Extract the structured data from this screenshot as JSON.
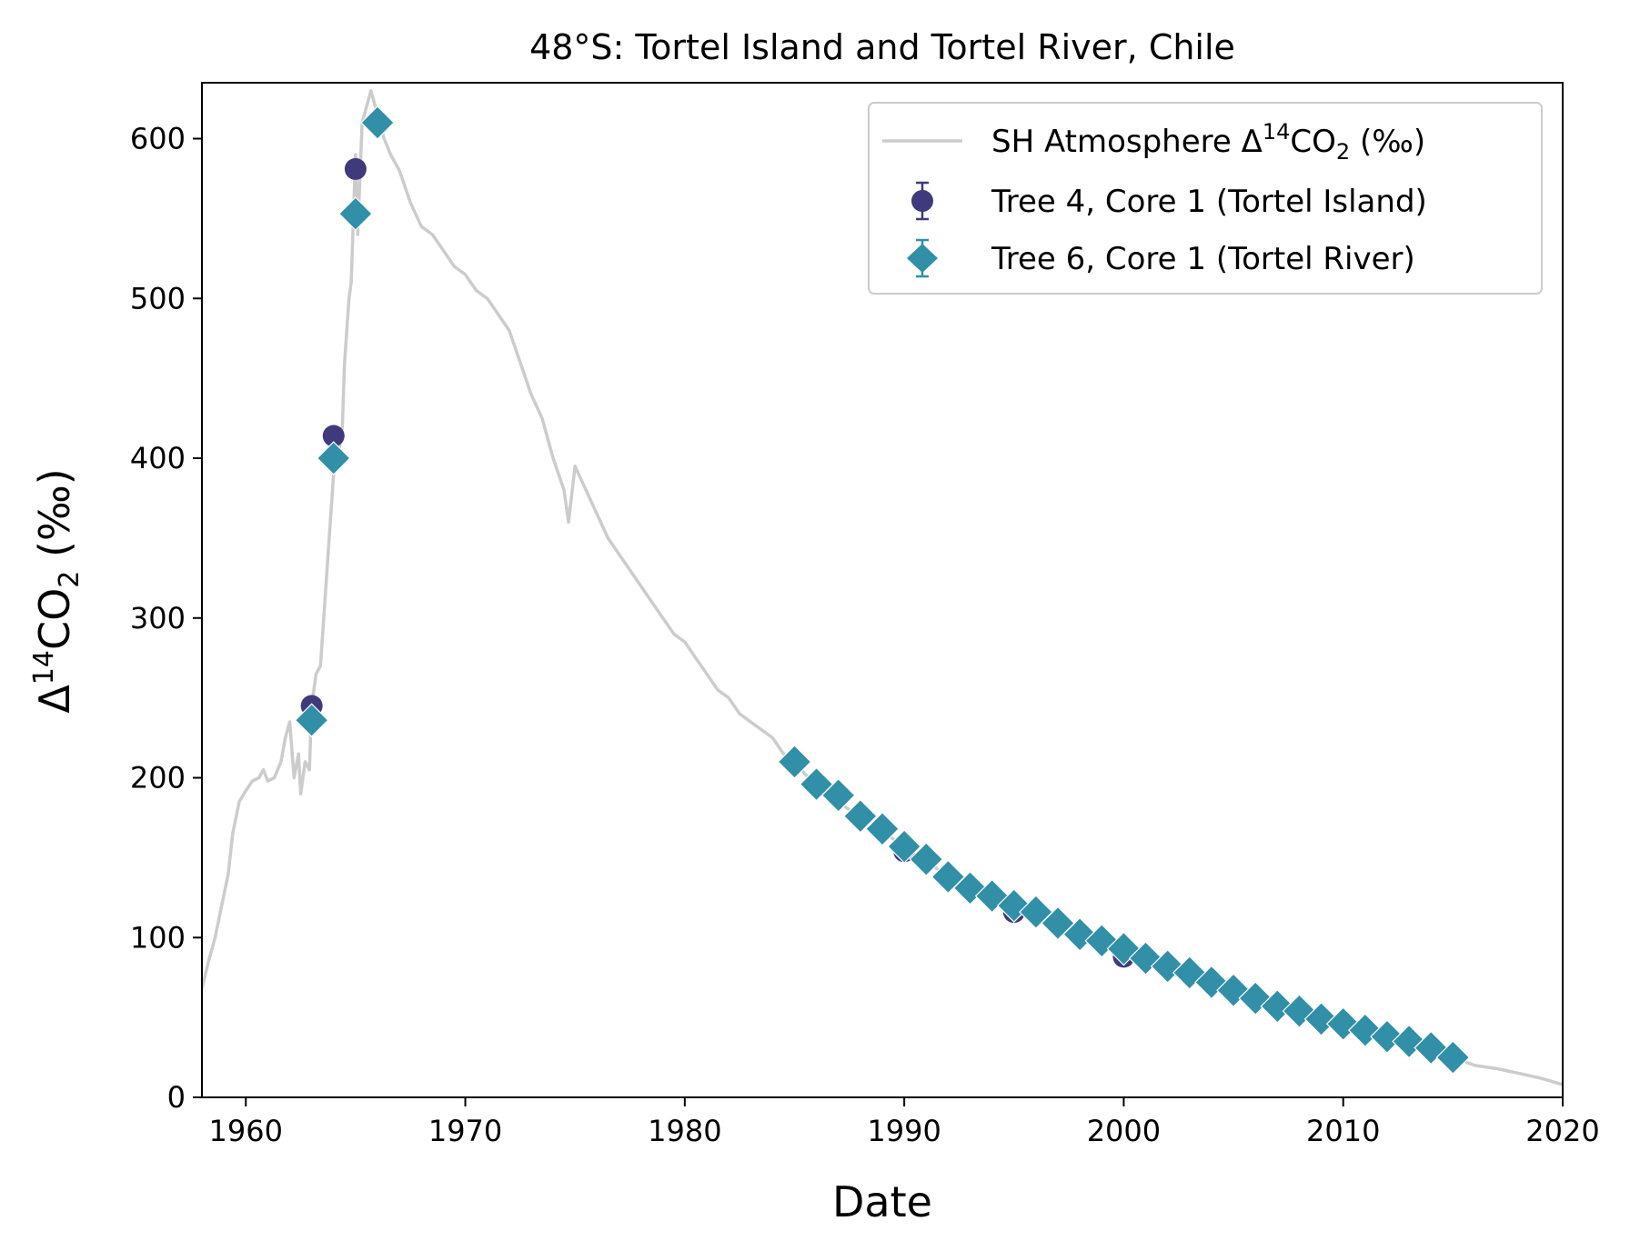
{
  "chart_data": {
    "type": "scatter",
    "title": "48°S: Tortel Island and Tortel River, Chile",
    "xlabel": "Date",
    "ylabel": {
      "base": "Δ",
      "sup": "14",
      "mid": "CO",
      "sub": "2",
      "tail": " (‰)"
    },
    "xlim": [
      1958,
      2020
    ],
    "ylim": [
      0,
      635
    ],
    "x_ticks": [
      1960,
      1970,
      1980,
      1990,
      2000,
      2010,
      2020
    ],
    "y_ticks": [
      0,
      100,
      200,
      300,
      400,
      500,
      600
    ],
    "grid": false,
    "legend_position": "top-right",
    "legend": [
      {
        "label_main": "SH Atmosphere Δ",
        "label_sup": "14",
        "label_mid": "CO",
        "label_sub": "2",
        "label_tail": " (‰)",
        "marker": "line"
      },
      {
        "label": "Tree 4, Core 1 (Tortel Island)",
        "marker": "circle"
      },
      {
        "label": "Tree 6, Core 1 (Tortel River)",
        "marker": "diamond"
      }
    ],
    "colors": {
      "atmosphere": "#cccccc",
      "tree4": "#3e3a7b",
      "tree6": "#318fa8"
    },
    "series": [
      {
        "key": "atmosphere",
        "type": "line",
        "x": [
          1958.0,
          1958.3,
          1958.6,
          1958.9,
          1959.2,
          1959.4,
          1959.7,
          1960.0,
          1960.3,
          1960.6,
          1960.8,
          1961.0,
          1961.3,
          1961.6,
          1961.8,
          1962.0,
          1962.2,
          1962.4,
          1962.5,
          1962.7,
          1962.9,
          1963.0,
          1963.2,
          1963.4,
          1963.6,
          1963.8,
          1964.0,
          1964.2,
          1964.4,
          1964.5,
          1964.7,
          1964.8,
          1965.0,
          1965.1,
          1965.3,
          1965.5,
          1965.7,
          1966.0,
          1966.3,
          1966.6,
          1967.0,
          1967.5,
          1968.0,
          1968.5,
          1969.0,
          1969.5,
          1970.0,
          1970.5,
          1971.0,
          1971.5,
          1972.0,
          1972.5,
          1973.0,
          1973.5,
          1974.0,
          1974.5,
          1974.7,
          1975.0,
          1975.5,
          1976.0,
          1976.5,
          1977.0,
          1977.5,
          1978.0,
          1978.5,
          1979.0,
          1979.5,
          1980.0,
          1980.5,
          1981.0,
          1981.5,
          1982.0,
          1982.5,
          1983.0,
          1983.5,
          1984.0,
          1984.5,
          1985.0,
          1985.5,
          1986.0,
          1986.5,
          1987.0,
          1987.5,
          1988.0,
          1989.0,
          1990.0,
          1991.0,
          1992.0,
          1993.0,
          1994.0,
          1995.0,
          1996.0,
          1997.0,
          1998.0,
          1999.0,
          2000.0,
          2001.0,
          2002.0,
          2003.0,
          2004.0,
          2005.0,
          2006.0,
          2007.0,
          2008.0,
          2009.0,
          2010.0,
          2011.0,
          2012.0,
          2013.0,
          2014.0,
          2015.0,
          2016.0,
          2017.0,
          2018.0,
          2019.0,
          2019.5,
          2020.0
        ],
        "y": [
          68,
          85,
          100,
          120,
          140,
          165,
          185,
          192,
          198,
          200,
          205,
          198,
          200,
          210,
          225,
          235,
          200,
          215,
          190,
          210,
          205,
          245,
          265,
          270,
          310,
          350,
          390,
          400,
          420,
          460,
          500,
          510,
          590,
          540,
          610,
          620,
          630,
          615,
          600,
          590,
          580,
          560,
          545,
          540,
          530,
          520,
          515,
          505,
          500,
          490,
          480,
          460,
          440,
          425,
          400,
          380,
          360,
          395,
          380,
          365,
          350,
          340,
          330,
          320,
          310,
          300,
          290,
          285,
          275,
          265,
          255,
          250,
          240,
          235,
          230,
          225,
          215,
          210,
          202,
          196,
          190,
          185,
          180,
          176,
          168,
          155,
          148,
          138,
          130,
          125,
          116,
          114,
          106,
          102,
          97,
          90,
          87,
          82,
          78,
          72,
          68,
          63,
          60,
          56,
          50,
          46,
          42,
          38,
          35,
          32,
          25,
          20,
          18,
          15,
          12,
          10,
          8
        ]
      },
      {
        "key": "tree4",
        "type": "scatter",
        "name": "Tree 4, Core 1 (Tortel Island)",
        "x": [
          1963,
          1964,
          1965,
          1990,
          1995,
          2000
        ],
        "y": [
          245,
          414,
          581,
          154,
          116,
          88
        ]
      },
      {
        "key": "tree6",
        "type": "scatter",
        "name": "Tree 6, Core 1 (Tortel River)",
        "x": [
          1963,
          1964,
          1965,
          1966,
          1985,
          1986,
          1987,
          1988,
          1989,
          1990,
          1991,
          1992,
          1993,
          1994,
          1995,
          1996,
          1997,
          1998,
          1999,
          2000,
          2001,
          2002,
          2003,
          2004,
          2005,
          2006,
          2007,
          2008,
          2009,
          2010,
          2011,
          2012,
          2013,
          2014,
          2015
        ],
        "y": [
          236,
          400,
          553,
          610,
          210,
          196,
          189,
          176,
          168,
          157,
          149,
          138,
          131,
          126,
          120,
          116,
          109,
          102,
          98,
          93,
          87,
          82,
          78,
          72,
          67,
          62,
          57,
          54,
          49,
          46,
          42,
          38,
          35,
          31,
          25
        ]
      }
    ]
  }
}
